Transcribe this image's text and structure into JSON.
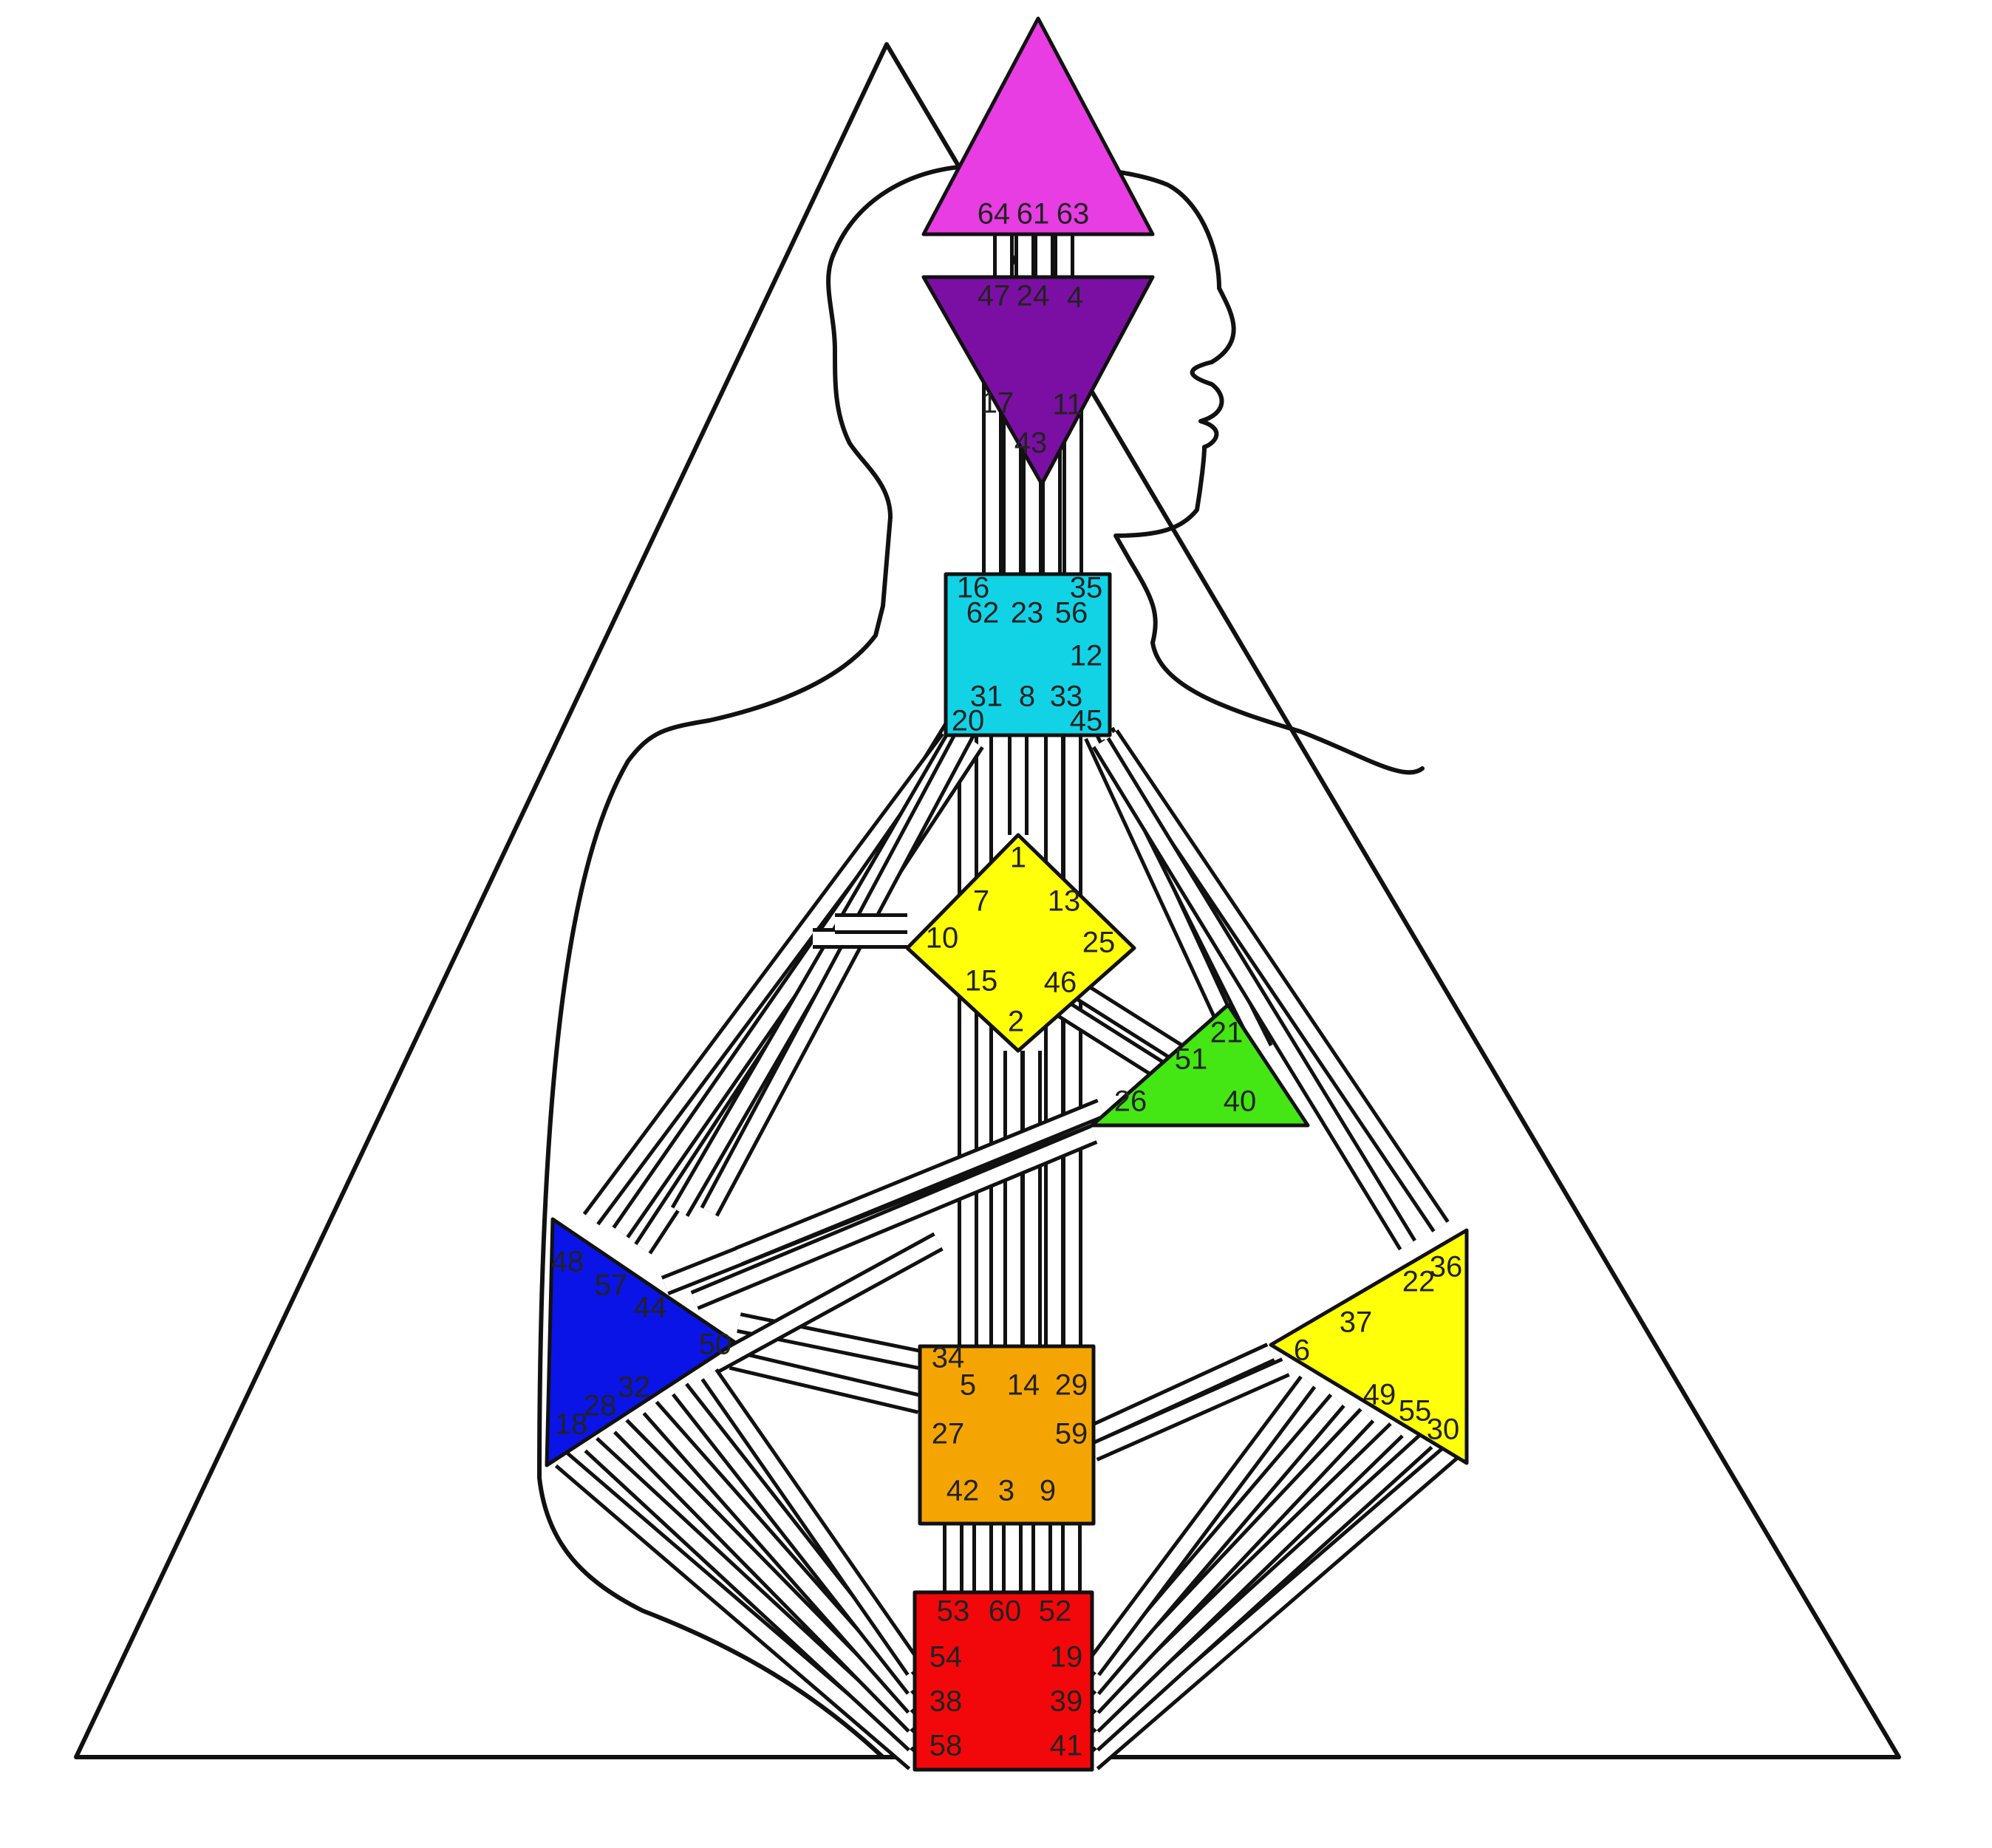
{
  "colors": {
    "head": "#e83de3",
    "ajna": "#7b0fa3",
    "throat": "#12d3e6",
    "g": "#ffff0a",
    "heart": "#44e614",
    "spleen": "#0a14e6",
    "sacral": "#f5a503",
    "solar_plexus": "#ffff0a",
    "root": "#f2080a"
  },
  "centers": {
    "head": {
      "gates": [
        "64",
        "61",
        "63"
      ]
    },
    "ajna": {
      "gates": [
        "47",
        "24",
        "4",
        "17",
        "11",
        "43"
      ]
    },
    "throat": {
      "gates": [
        "16",
        "35",
        "62",
        "23",
        "56",
        "12",
        "31",
        "8",
        "33",
        "20",
        "45"
      ]
    },
    "g": {
      "gates": [
        "1",
        "7",
        "13",
        "10",
        "25",
        "15",
        "46",
        "2"
      ]
    },
    "heart": {
      "gates": [
        "21",
        "51",
        "26",
        "40"
      ]
    },
    "spleen": {
      "gates": [
        "48",
        "57",
        "44",
        "50",
        "32",
        "28",
        "18"
      ]
    },
    "sacral": {
      "gates": [
        "34",
        "5",
        "14",
        "29",
        "27",
        "59",
        "42",
        "3",
        "9"
      ]
    },
    "solar_plexus": {
      "gates": [
        "36",
        "22",
        "37",
        "6",
        "49",
        "55",
        "30"
      ]
    },
    "root": {
      "gates": [
        "53",
        "60",
        "52",
        "54",
        "19",
        "38",
        "39",
        "58",
        "41"
      ]
    }
  }
}
